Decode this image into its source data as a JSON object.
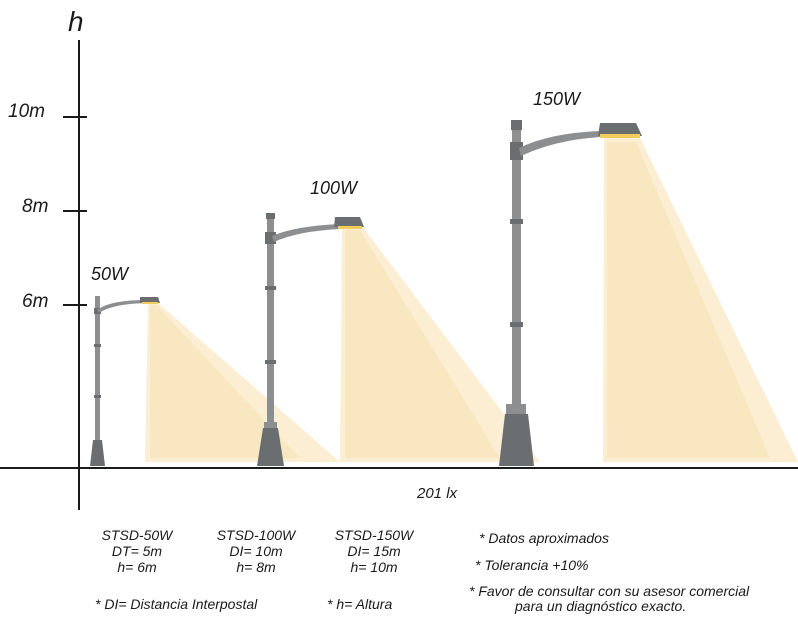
{
  "diagram": {
    "axis_label": "h",
    "ticks": [
      "10m",
      "8m",
      "6m"
    ],
    "ground_label": "201 lx",
    "lamps": [
      {
        "power": "50W",
        "model": "STSD-50W",
        "dist": "DT= 5m",
        "height": "h= 6m"
      },
      {
        "power": "100W",
        "model": "STSD-100W",
        "dist": "DI= 10m",
        "height": "h= 8m"
      },
      {
        "power": "150W",
        "model": "STSD-150W",
        "dist": "DI= 15m",
        "height": "h= 10m"
      }
    ],
    "footnotes": {
      "di_def": "* DI= Distancia Interpostal",
      "h_def": "* h= Altura",
      "approx": "* Datos aproximados",
      "tolerance": "* Tolerancia +10%",
      "consult_1": "* Favor de consultar con su asesor comercial",
      "consult_2": "para un diagnóstico exacto."
    },
    "colors": {
      "pole": "#8c8e90",
      "pole_dark": "#6b6e71",
      "light": "#fbeed2",
      "axis": "#1a1a1a"
    }
  }
}
